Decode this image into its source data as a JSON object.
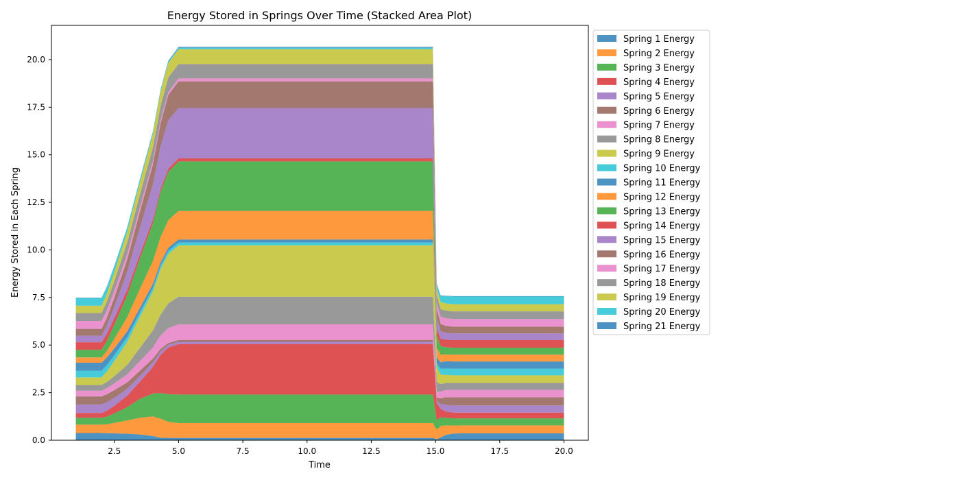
{
  "chart_data": {
    "type": "area",
    "stacked": true,
    "title": "Energy Stored in Springs Over Time (Stacked Area Plot)",
    "xlabel": "Time",
    "ylabel": "Energy Stored in Each Spring",
    "xlim": [
      0.05,
      20.95
    ],
    "ylim": [
      0,
      21.8
    ],
    "x_ticks": [
      "2.5",
      "5.0",
      "7.5",
      "10.0",
      "12.5",
      "15.0",
      "17.5",
      "20.0"
    ],
    "y_ticks": [
      "0.0",
      "2.5",
      "5.0",
      "7.5",
      "10.0",
      "12.5",
      "15.0",
      "17.5",
      "20.0"
    ],
    "x_tick_values": [
      2.5,
      5.0,
      7.5,
      10.0,
      12.5,
      15.0,
      17.5,
      20.0
    ],
    "y_tick_values": [
      0,
      2.5,
      5.0,
      7.5,
      10.0,
      12.5,
      15.0,
      17.5,
      20.0
    ],
    "grid": false,
    "legend_position": "outside-upper-right",
    "alpha": 0.8,
    "x": [
      1.0,
      2.0,
      2.2,
      2.5,
      3.0,
      3.5,
      4.0,
      4.3,
      4.6,
      5.0,
      6.0,
      8.0,
      10.0,
      12.0,
      14.0,
      14.9,
      15.05,
      15.2,
      15.4,
      15.7,
      16.0,
      17.0,
      18.0,
      19.0,
      20.0
    ],
    "series": [
      {
        "name": "Spring 1 Energy",
        "color": "#1f77b4",
        "values": [
          0.38,
          0.38,
          0.37,
          0.36,
          0.34,
          0.3,
          0.22,
          0.13,
          0.12,
          0.12,
          0.12,
          0.12,
          0.12,
          0.12,
          0.12,
          0.12,
          0.05,
          0.15,
          0.28,
          0.35,
          0.36,
          0.36,
          0.36,
          0.36,
          0.36
        ]
      },
      {
        "name": "Spring 2 Energy",
        "color": "#ff7f0e",
        "values": [
          0.44,
          0.44,
          0.47,
          0.55,
          0.7,
          0.88,
          1.03,
          1.0,
          0.85,
          0.78,
          0.78,
          0.78,
          0.78,
          0.78,
          0.78,
          0.78,
          0.5,
          0.6,
          0.5,
          0.42,
          0.42,
          0.42,
          0.42,
          0.42,
          0.42
        ]
      },
      {
        "name": "Spring 3 Energy",
        "color": "#2ca02c",
        "values": [
          0.36,
          0.36,
          0.4,
          0.5,
          0.7,
          1.0,
          1.2,
          1.35,
          1.45,
          1.5,
          1.5,
          1.5,
          1.5,
          1.5,
          1.5,
          1.5,
          0.5,
          0.45,
          0.4,
          0.38,
          0.37,
          0.37,
          0.37,
          0.37,
          0.37
        ]
      },
      {
        "name": "Spring 4 Energy",
        "color": "#d62728",
        "values": [
          0.25,
          0.25,
          0.3,
          0.4,
          0.6,
          0.9,
          1.4,
          2.0,
          2.45,
          2.65,
          2.65,
          2.65,
          2.65,
          2.65,
          2.65,
          2.65,
          0.9,
          0.45,
          0.33,
          0.3,
          0.3,
          0.3,
          0.3,
          0.3,
          0.3
        ]
      },
      {
        "name": "Spring 5 Energy",
        "color": "#9467bd",
        "values": [
          0.45,
          0.45,
          0.45,
          0.42,
          0.36,
          0.3,
          0.24,
          0.18,
          0.14,
          0.12,
          0.12,
          0.12,
          0.12,
          0.12,
          0.12,
          0.12,
          0.15,
          0.25,
          0.35,
          0.38,
          0.38,
          0.38,
          0.38,
          0.38,
          0.38
        ]
      },
      {
        "name": "Spring 6 Energy",
        "color": "#8c564b",
        "values": [
          0.42,
          0.42,
          0.42,
          0.4,
          0.34,
          0.28,
          0.2,
          0.14,
          0.1,
          0.1,
          0.1,
          0.1,
          0.1,
          0.1,
          0.1,
          0.1,
          0.15,
          0.3,
          0.4,
          0.42,
          0.42,
          0.42,
          0.42,
          0.42,
          0.42
        ]
      },
      {
        "name": "Spring 7 Energy",
        "color": "#e377c2",
        "values": [
          0.3,
          0.3,
          0.32,
          0.36,
          0.42,
          0.5,
          0.58,
          0.7,
          0.78,
          0.82,
          0.82,
          0.82,
          0.82,
          0.82,
          0.82,
          0.82,
          0.3,
          0.35,
          0.38,
          0.4,
          0.4,
          0.4,
          0.4,
          0.4,
          0.4
        ]
      },
      {
        "name": "Spring 8 Energy",
        "color": "#7f7f7f",
        "values": [
          0.3,
          0.3,
          0.32,
          0.38,
          0.5,
          0.7,
          0.9,
          1.1,
          1.3,
          1.45,
          1.45,
          1.45,
          1.45,
          1.45,
          1.45,
          1.45,
          0.5,
          0.4,
          0.37,
          0.36,
          0.36,
          0.36,
          0.36,
          0.36,
          0.36
        ]
      },
      {
        "name": "Spring 9 Energy",
        "color": "#bcbd22",
        "values": [
          0.4,
          0.4,
          0.55,
          0.8,
          1.2,
          1.65,
          2.05,
          2.4,
          2.6,
          2.7,
          2.7,
          2.7,
          2.7,
          2.7,
          2.7,
          2.7,
          0.8,
          0.5,
          0.42,
          0.4,
          0.4,
          0.4,
          0.4,
          0.4,
          0.4
        ]
      },
      {
        "name": "Spring 10 Energy",
        "color": "#17becf",
        "values": [
          0.35,
          0.35,
          0.33,
          0.3,
          0.26,
          0.22,
          0.19,
          0.17,
          0.16,
          0.15,
          0.15,
          0.15,
          0.15,
          0.15,
          0.15,
          0.15,
          0.2,
          0.3,
          0.34,
          0.35,
          0.35,
          0.35,
          0.35,
          0.35,
          0.35
        ]
      },
      {
        "name": "Spring 11 Energy",
        "color": "#1f77b4",
        "values": [
          0.42,
          0.42,
          0.4,
          0.36,
          0.3,
          0.24,
          0.2,
          0.17,
          0.16,
          0.16,
          0.16,
          0.16,
          0.16,
          0.16,
          0.16,
          0.16,
          0.3,
          0.35,
          0.38,
          0.38,
          0.38,
          0.38,
          0.38,
          0.38,
          0.38
        ]
      },
      {
        "name": "Spring 12 Energy",
        "color": "#ff7f0e",
        "values": [
          0.28,
          0.28,
          0.35,
          0.5,
          0.75,
          1.0,
          1.2,
          1.35,
          1.45,
          1.5,
          1.5,
          1.5,
          1.5,
          1.5,
          1.5,
          1.5,
          0.5,
          0.4,
          0.36,
          0.36,
          0.36,
          0.36,
          0.36,
          0.36,
          0.36
        ]
      },
      {
        "name": "Spring 13 Energy",
        "color": "#2ca02c",
        "values": [
          0.4,
          0.4,
          0.52,
          0.75,
          1.15,
          1.6,
          2.0,
          2.35,
          2.55,
          2.6,
          2.6,
          2.6,
          2.6,
          2.6,
          2.6,
          2.6,
          0.7,
          0.45,
          0.38,
          0.36,
          0.36,
          0.36,
          0.36,
          0.36,
          0.36
        ]
      },
      {
        "name": "Spring 14 Energy",
        "color": "#d62728",
        "values": [
          0.4,
          0.4,
          0.38,
          0.34,
          0.28,
          0.22,
          0.18,
          0.16,
          0.16,
          0.16,
          0.16,
          0.16,
          0.16,
          0.16,
          0.16,
          0.16,
          0.3,
          0.38,
          0.4,
          0.4,
          0.4,
          0.4,
          0.4,
          0.4,
          0.4
        ]
      },
      {
        "name": "Spring 15 Energy",
        "color": "#9467bd",
        "values": [
          0.34,
          0.34,
          0.42,
          0.6,
          0.95,
          1.4,
          1.85,
          2.25,
          2.55,
          2.65,
          2.65,
          2.65,
          2.65,
          2.65,
          2.65,
          2.65,
          0.6,
          0.4,
          0.36,
          0.35,
          0.35,
          0.35,
          0.35,
          0.35,
          0.35
        ]
      },
      {
        "name": "Spring 16 Energy",
        "color": "#8c564b",
        "values": [
          0.36,
          0.36,
          0.4,
          0.48,
          0.65,
          0.85,
          1.05,
          1.2,
          1.32,
          1.4,
          1.4,
          1.4,
          1.4,
          1.4,
          1.4,
          1.4,
          0.45,
          0.38,
          0.36,
          0.36,
          0.36,
          0.36,
          0.36,
          0.36,
          0.36
        ]
      },
      {
        "name": "Spring 17 Energy",
        "color": "#e377c2",
        "values": [
          0.42,
          0.42,
          0.4,
          0.36,
          0.3,
          0.24,
          0.2,
          0.17,
          0.16,
          0.15,
          0.15,
          0.15,
          0.15,
          0.15,
          0.15,
          0.15,
          0.3,
          0.38,
          0.4,
          0.4,
          0.4,
          0.4,
          0.4,
          0.4,
          0.4
        ]
      },
      {
        "name": "Spring 18 Energy",
        "color": "#7f7f7f",
        "values": [
          0.42,
          0.42,
          0.45,
          0.5,
          0.58,
          0.65,
          0.7,
          0.74,
          0.76,
          0.76,
          0.76,
          0.76,
          0.76,
          0.76,
          0.76,
          0.76,
          0.4,
          0.4,
          0.4,
          0.4,
          0.4,
          0.4,
          0.4,
          0.4,
          0.4
        ]
      },
      {
        "name": "Spring 19 Energy",
        "color": "#bcbd22",
        "values": [
          0.38,
          0.38,
          0.42,
          0.48,
          0.56,
          0.64,
          0.7,
          0.74,
          0.76,
          0.78,
          0.78,
          0.78,
          0.78,
          0.78,
          0.78,
          0.78,
          0.4,
          0.38,
          0.38,
          0.38,
          0.38,
          0.38,
          0.38,
          0.38,
          0.38
        ]
      },
      {
        "name": "Spring 20 Energy",
        "color": "#17becf",
        "values": [
          0.4,
          0.4,
          0.36,
          0.3,
          0.22,
          0.15,
          0.1,
          0.08,
          0.07,
          0.07,
          0.07,
          0.07,
          0.07,
          0.07,
          0.07,
          0.07,
          0.2,
          0.32,
          0.38,
          0.4,
          0.4,
          0.4,
          0.4,
          0.4,
          0.4
        ]
      },
      {
        "name": "Spring 21 Energy",
        "color": "#1f77b4",
        "values": [
          0.02,
          0.02,
          0.02,
          0.03,
          0.03,
          0.04,
          0.04,
          0.05,
          0.05,
          0.05,
          0.05,
          0.05,
          0.05,
          0.05,
          0.05,
          0.05,
          0.03,
          0.02,
          0.02,
          0.02,
          0.02,
          0.02,
          0.02,
          0.02,
          0.02
        ]
      }
    ]
  }
}
